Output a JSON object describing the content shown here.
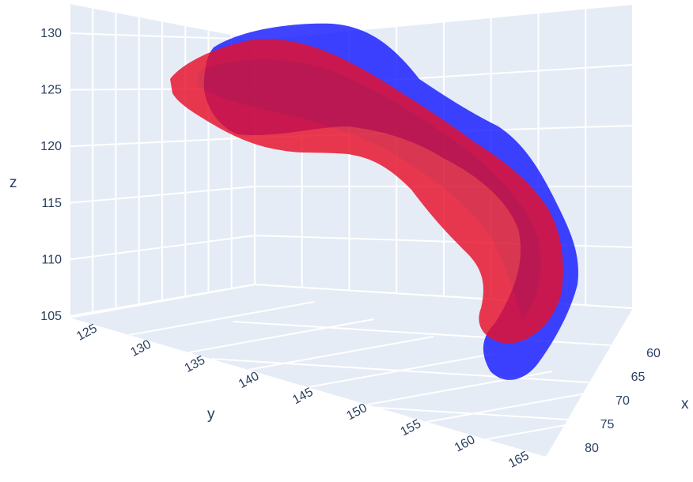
{
  "chart_data": {
    "type": "mesh3d",
    "axes": {
      "x": {
        "title": "x",
        "ticks": [
          "60",
          "65",
          "70",
          "75",
          "80"
        ]
      },
      "y": {
        "title": "y",
        "ticks": [
          "125",
          "130",
          "135",
          "140",
          "145",
          "150",
          "155",
          "160",
          "165"
        ]
      },
      "z": {
        "title": "z",
        "ticks": [
          "105",
          "110",
          "115",
          "120",
          "125",
          "130"
        ]
      }
    },
    "scene": {
      "background": "#e5ecf6",
      "grid": true,
      "grid_color": "#ffffff"
    },
    "series": [
      {
        "color": "#0000ff",
        "opacity": 0.75,
        "shape": "curved elongated surface"
      },
      {
        "color": "#ff0000",
        "opacity": 0.75,
        "shape": "curved elongated surface"
      }
    ],
    "colors": {
      "text": "#2a3f5f"
    }
  }
}
